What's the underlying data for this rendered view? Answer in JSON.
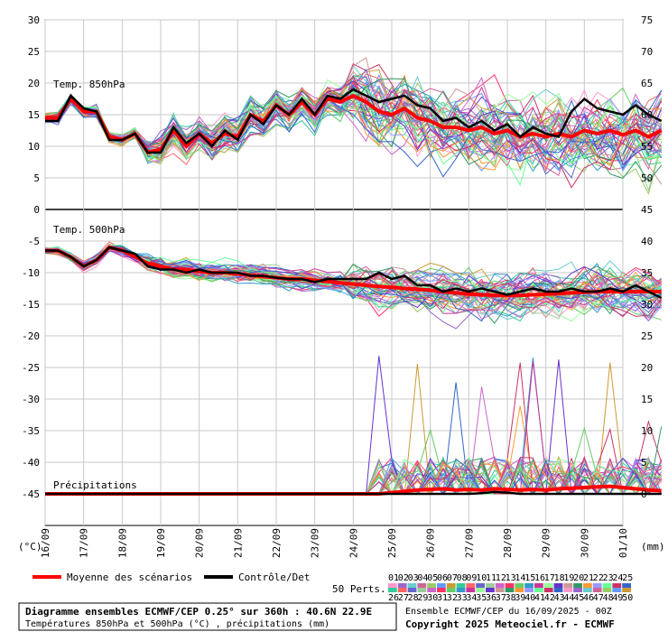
{
  "chart_data": {
    "type": "line",
    "title": "Diagramme ensembles ECMWF/CEP 0.25° sur 360h : 40.6N 22.9E",
    "subtitle": "Températures 850hPa et 500hPa (°C) , précipitations (mm)",
    "run_info": "Ensemble ECMWF/CEP du 16/09/2025 - 00Z",
    "copyright": "Copyright 2025 Meteociel.fr - ECMWF",
    "left_axis_unit": "(°C)",
    "right_axis_unit": "(mm)",
    "left_ticks": [
      30,
      25,
      20,
      15,
      10,
      5,
      0,
      -5,
      -10,
      -15,
      -20,
      -25,
      -30,
      -35,
      -40,
      -45
    ],
    "right_ticks": [
      75,
      70,
      65,
      60,
      55,
      50,
      45,
      40,
      35,
      30,
      25,
      20,
      15,
      10,
      5,
      0
    ],
    "x_labels": [
      "16/09",
      "17/09",
      "18/09",
      "19/09",
      "20/09",
      "21/09",
      "22/09",
      "23/09",
      "24/09",
      "25/09",
      "26/09",
      "27/09",
      "28/09",
      "29/09",
      "30/09",
      "01/10"
    ],
    "grid": true,
    "panels": {
      "t850": {
        "label": "Temp. 850hPa",
        "mean": [
          14.5,
          14.5,
          17.5,
          15.5,
          15.5,
          11.5,
          11,
          12,
          9,
          9.5,
          12.5,
          10,
          12,
          10.5,
          12,
          11.5,
          15,
          14,
          16.5,
          15,
          17,
          15,
          17.5,
          17,
          18,
          17,
          15.5,
          15,
          16,
          14.5,
          14,
          13,
          13,
          12.5,
          13,
          12,
          12.5,
          11.5,
          12,
          11.5,
          12,
          11.5,
          12.5,
          12,
          12.5,
          11.8,
          12.5,
          11.5,
          12.5
        ],
        "control": [
          14,
          14,
          18,
          16,
          15.5,
          11,
          11,
          12,
          9,
          9,
          13,
          10.5,
          12,
          10,
          12.5,
          11,
          15,
          13.5,
          16.5,
          15,
          17.5,
          15,
          18,
          17.5,
          19,
          18,
          17,
          17.5,
          18,
          16.5,
          16,
          14,
          14.5,
          13,
          14,
          12.5,
          13.5,
          11.5,
          13,
          12,
          11.5,
          15.5,
          17.5,
          16,
          15.5,
          15,
          16.5,
          15,
          14
        ]
      },
      "t500": {
        "label": "Temp. 500hPa",
        "mean": [
          -6.5,
          -6.5,
          -7.5,
          -9,
          -8,
          -6,
          -6.5,
          -7.5,
          -8.5,
          -9,
          -9.5,
          -9.5,
          -9.8,
          -10,
          -10,
          -10.2,
          -10.4,
          -10.6,
          -10.8,
          -11,
          -11,
          -11.2,
          -11.4,
          -11.6,
          -11.8,
          -12,
          -12.2,
          -12.3,
          -12.5,
          -12.6,
          -12.8,
          -13,
          -13.2,
          -13.4,
          -13.5,
          -13.6,
          -13.6,
          -13.6,
          -13.5,
          -13.4,
          -13.3,
          -13.2,
          -13.1,
          -13,
          -13,
          -13,
          -13,
          -13,
          -13
        ],
        "control": [
          -6.5,
          -6.5,
          -7.5,
          -9,
          -8,
          -6,
          -6.5,
          -7,
          -9,
          -9.5,
          -9.5,
          -10,
          -9.5,
          -10,
          -10,
          -10,
          -10.5,
          -10.5,
          -10.8,
          -11,
          -11,
          -11.5,
          -11,
          -11,
          -11,
          -11,
          -10,
          -11,
          -10.5,
          -12,
          -12,
          -13,
          -12.5,
          -13,
          -12.5,
          -13,
          -13.5,
          -13,
          -12.5,
          -13,
          -13,
          -12.5,
          -13,
          -13,
          -12.5,
          -13,
          -12,
          -13,
          -14
        ]
      },
      "precip": {
        "label": "Précipitations",
        "mean": [
          0,
          0,
          0,
          0,
          0,
          0,
          0,
          0,
          0,
          0,
          0,
          0,
          0,
          0,
          0,
          0,
          0,
          0,
          0,
          0,
          0,
          0,
          0,
          0,
          0,
          0,
          0,
          0.2,
          0.4,
          0.6,
          0.7,
          0.8,
          0.6,
          0.7,
          0.6,
          0.8,
          0.7,
          0.6,
          0.7,
          0.6,
          0.8,
          0.9,
          1,
          1.1,
          1.2,
          1,
          0.8,
          0.6,
          0.5
        ],
        "control": [
          0,
          0,
          0,
          0,
          0,
          0,
          0,
          0,
          0,
          0,
          0,
          0,
          0,
          0,
          0,
          0,
          0,
          0,
          0,
          0,
          0,
          0,
          0,
          0,
          0,
          0,
          0,
          0,
          0,
          0,
          0,
          0,
          0,
          0,
          0.1,
          0.3,
          0.2,
          0,
          0,
          0,
          0,
          0,
          0,
          0,
          0,
          0,
          0,
          0,
          0
        ]
      }
    },
    "legend": {
      "mean_label": "Moyenne des scénarios",
      "mean_color": "#ff0000",
      "control_label": "Contrôle/Det",
      "control_color": "#000000",
      "perts_label": "50 Perts.",
      "perts_row1": [
        "01",
        "02",
        "03",
        "04",
        "05",
        "06",
        "07",
        "08",
        "09",
        "10",
        "11",
        "12",
        "13",
        "14",
        "15",
        "16",
        "17",
        "18",
        "19",
        "20",
        "21",
        "22",
        "23",
        "24",
        "25"
      ],
      "perts_row2": [
        "26",
        "27",
        "28",
        "29",
        "30",
        "31",
        "32",
        "33",
        "34",
        "35",
        "36",
        "37",
        "38",
        "39",
        "40",
        "41",
        "42",
        "43",
        "44",
        "45",
        "46",
        "47",
        "48",
        "49",
        "50"
      ],
      "perts_colors": [
        "#ff99cc",
        "#9966cc",
        "#66cccc",
        "#cc6699",
        "#99cc66",
        "#6699ff",
        "#cc9933",
        "#33cc99",
        "#ff6666",
        "#6666cc",
        "#99cc99",
        "#cc66cc",
        "#ff3366",
        "#66cc66",
        "#3399cc",
        "#cc3399",
        "#99ff99",
        "#6633cc",
        "#cc9999",
        "#339966",
        "#ff9933",
        "#9999ff",
        "#66ff99",
        "#cc3366",
        "#3366cc"
      ]
    }
  }
}
